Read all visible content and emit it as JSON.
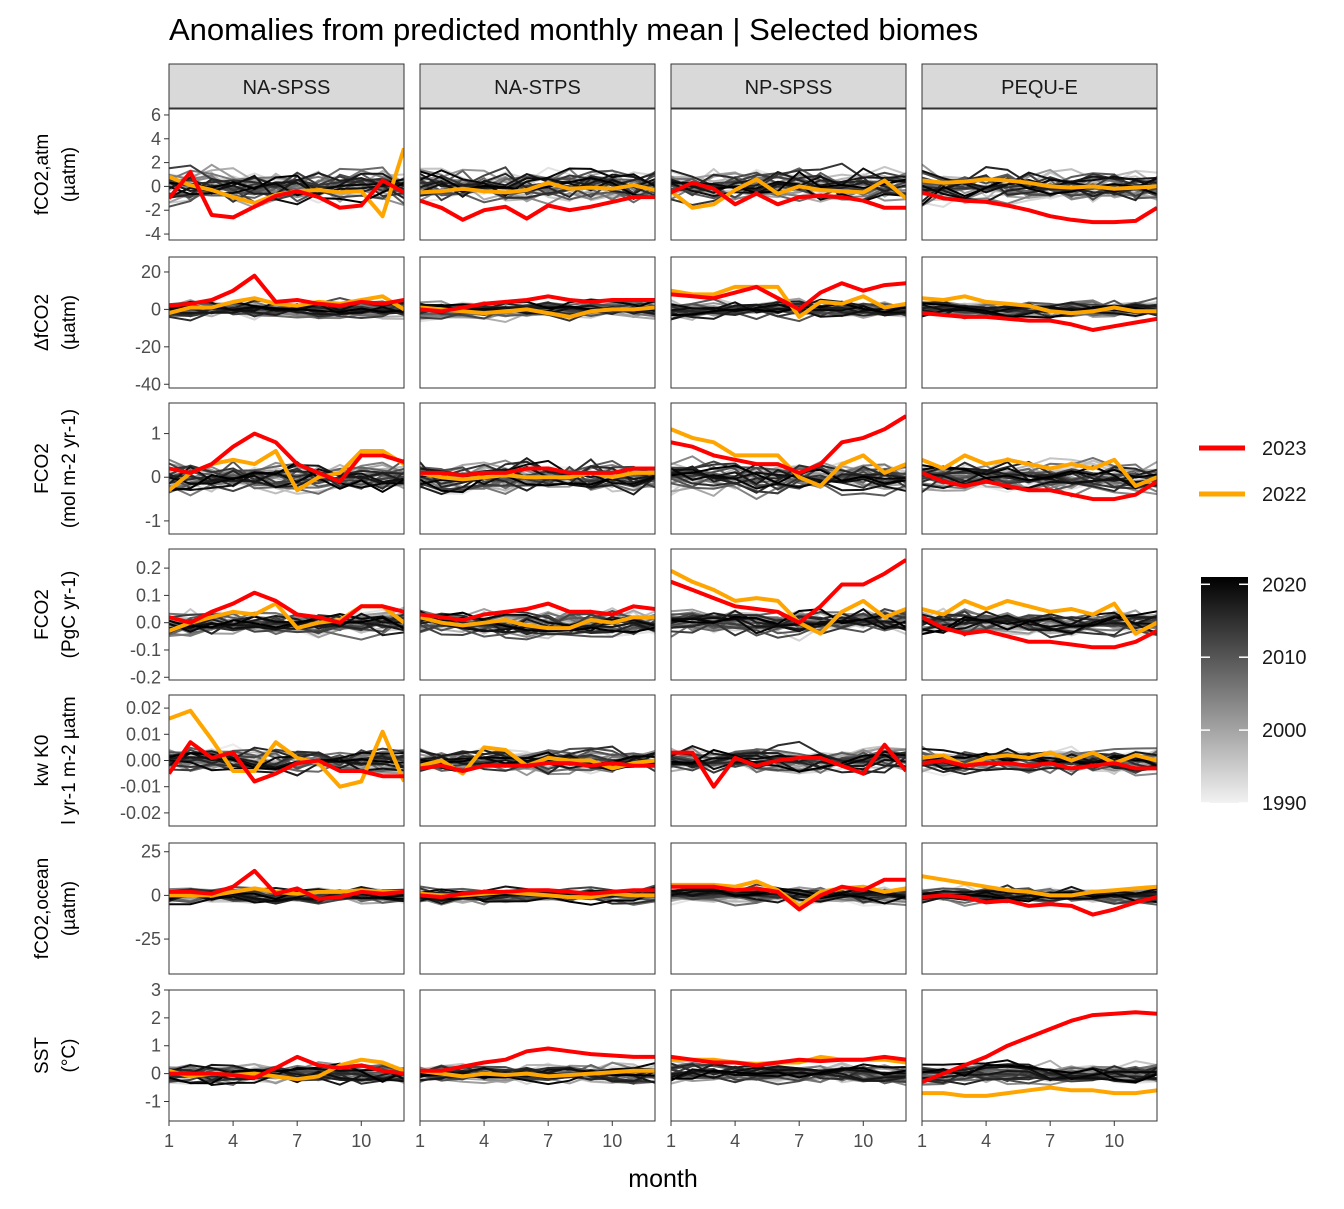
{
  "chart_data": {
    "type": "line",
    "title": "Anomalies from predicted monthly mean | Selected biomes",
    "xlabel": "month",
    "x_ticks": [
      1,
      4,
      7,
      10
    ],
    "x_tick_labels": [
      "1",
      "4",
      "7",
      "10"
    ],
    "xlim": [
      1,
      12
    ],
    "grid": false,
    "facets": [
      "NA-SPSS",
      "NA-STPS",
      "NP-SPSS",
      "PEQU-E"
    ],
    "legend": {
      "placement": "right",
      "highlight": [
        {
          "name": "2023",
          "color": "#FF0000"
        },
        {
          "name": "2022",
          "color": "#FFA500"
        }
      ],
      "gradient": {
        "low_color": "#F2F2F2",
        "high_color": "#000000",
        "ticks": [
          "2020",
          "2010",
          "2000",
          "1990"
        ],
        "range": [
          1990,
          2021
        ]
      }
    },
    "background_years": {
      "first": 1990,
      "last": 2021
    },
    "rows": [
      {
        "id": "fco2atm",
        "ylabel_lines": [
          "fCO2,atm",
          "(µatm)"
        ],
        "ylim": [
          -4.5,
          6.5
        ],
        "y_ticks": [
          -4,
          -2,
          0,
          2,
          4,
          6
        ],
        "y_tick_labels": [
          "-4",
          "-2",
          "0",
          "2",
          "4",
          "6"
        ],
        "spread": 1.2,
        "series": {
          "NA-SPSS": {
            "2023": [
              -1.0,
              1.2,
              -2.4,
              -2.6,
              -1.7,
              -0.8,
              -0.4,
              -0.9,
              -1.8,
              -1.6,
              0.5,
              -0.5
            ],
            "2022": [
              0.8,
              0.1,
              -0.3,
              -0.9,
              -1.4,
              -0.7,
              -0.4,
              -0.3,
              -0.5,
              -0.4,
              -2.5,
              3.2
            ]
          },
          "NA-STPS": {
            "2023": [
              -1.2,
              -1.8,
              -2.8,
              -2.0,
              -1.7,
              -2.7,
              -1.6,
              -2.0,
              -1.7,
              -1.3,
              -0.9,
              -0.9
            ],
            "2022": [
              -0.5,
              -0.4,
              -0.2,
              -0.4,
              -0.5,
              -0.3,
              0.3,
              -0.2,
              -0.1,
              -0.2,
              0.1,
              -0.3
            ]
          },
          "NP-SPSS": {
            "2023": [
              -0.5,
              0.3,
              -0.2,
              -1.5,
              -0.6,
              -1.5,
              -0.9,
              -0.8,
              -0.9,
              -1.2,
              -1.8,
              -1.8
            ],
            "2022": [
              -0.4,
              -1.8,
              -1.5,
              -0.3,
              0.6,
              -0.6,
              0.0,
              -0.3,
              -0.4,
              -0.5,
              0.5,
              -1.0
            ]
          },
          "PEQU-E": {
            "2023": [
              -0.5,
              -1.0,
              -1.2,
              -1.3,
              -1.6,
              -2.0,
              -2.5,
              -2.8,
              -3.0,
              -3.0,
              -2.9,
              -1.8
            ],
            "2022": [
              0.5,
              0.3,
              0.4,
              0.6,
              0.5,
              0.3,
              0.0,
              -0.1,
              0.0,
              -0.2,
              -0.1,
              0.0
            ]
          }
        }
      },
      {
        "id": "dfco2",
        "ylabel_lines": [
          "ΔfCO2",
          "(µatm)"
        ],
        "ylim": [
          -42,
          28
        ],
        "y_ticks": [
          -40,
          -20,
          0,
          20
        ],
        "y_tick_labels": [
          "-40",
          "-20",
          "0",
          "20"
        ],
        "spread": 4,
        "series": {
          "NA-SPSS": {
            "2023": [
              2,
              3,
              5,
              10,
              18,
              4,
              5,
              3,
              2,
              4,
              3,
              5
            ],
            "2022": [
              -2,
              1,
              1,
              4,
              6,
              3,
              2,
              4,
              3,
              5,
              7,
              0
            ]
          },
          "NA-STPS": {
            "2023": [
              0,
              -1,
              1,
              3,
              4,
              5,
              7,
              5,
              4,
              5,
              5,
              5
            ],
            "2022": [
              1,
              0,
              -1,
              -2,
              -1,
              0,
              -2,
              -4,
              -1,
              0,
              0,
              1
            ]
          },
          "NP-SPSS": {
            "2023": [
              8,
              7,
              6,
              9,
              12,
              6,
              0,
              9,
              14,
              10,
              13,
              14
            ],
            "2022": [
              10,
              8,
              8,
              12,
              12,
              12,
              -4,
              4,
              3,
              7,
              1,
              3
            ]
          },
          "PEQU-E": {
            "2023": [
              -2,
              -3,
              -4,
              -4,
              -5,
              -6,
              -6,
              -8,
              -11,
              -9,
              -7,
              -5
            ],
            "2022": [
              6,
              5,
              7,
              4,
              3,
              2,
              -1,
              -2,
              -1,
              1,
              -1,
              -1
            ]
          }
        }
      },
      {
        "id": "fco2flux",
        "ylabel_lines": [
          "FCO2",
          "(mol m-2 yr-1)"
        ],
        "ylim": [
          -1.3,
          1.7
        ],
        "y_ticks": [
          -1,
          0,
          1
        ],
        "y_tick_labels": [
          "-1",
          "0",
          "1"
        ],
        "spread": 0.3,
        "series": {
          "NA-SPSS": {
            "2023": [
              0.2,
              0.1,
              0.3,
              0.7,
              1.0,
              0.8,
              0.3,
              0.1,
              -0.1,
              0.5,
              0.5,
              0.35
            ],
            "2022": [
              -0.3,
              0.1,
              0.3,
              0.4,
              0.3,
              0.6,
              -0.3,
              0.0,
              0.1,
              0.6,
              0.6,
              0.3
            ]
          },
          "NA-STPS": {
            "2023": [
              0.1,
              0.1,
              0.05,
              0.1,
              0.1,
              0.2,
              0.2,
              0.1,
              0.1,
              0.1,
              0.2,
              0.2
            ],
            "2022": [
              0.1,
              0.0,
              -0.05,
              0.0,
              0.05,
              0.0,
              0.0,
              0.0,
              0.1,
              0.0,
              0.1,
              0.1
            ]
          },
          "NP-SPSS": {
            "2023": [
              0.8,
              0.7,
              0.5,
              0.4,
              0.3,
              0.3,
              0.1,
              0.3,
              0.8,
              0.9,
              1.1,
              1.4
            ],
            "2022": [
              1.1,
              0.9,
              0.8,
              0.5,
              0.5,
              0.5,
              0.0,
              -0.2,
              0.3,
              0.5,
              0.1,
              0.3
            ]
          },
          "PEQU-E": {
            "2023": [
              0.1,
              -0.1,
              -0.2,
              -0.1,
              -0.2,
              -0.3,
              -0.3,
              -0.4,
              -0.5,
              -0.5,
              -0.4,
              -0.1
            ],
            "2022": [
              0.4,
              0.2,
              0.5,
              0.3,
              0.4,
              0.3,
              0.2,
              0.3,
              0.2,
              0.4,
              -0.2,
              0.0
            ]
          }
        }
      },
      {
        "id": "fco2pgc",
        "ylabel_lines": [
          "FCO2",
          "(PgC yr-1)"
        ],
        "ylim": [
          -0.21,
          0.27
        ],
        "y_ticks": [
          -0.2,
          -0.1,
          0.0,
          0.1,
          0.2
        ],
        "y_tick_labels": [
          "-0.2",
          "-0.1",
          "0.0",
          "0.1",
          "0.2"
        ],
        "spread": 0.04,
        "series": {
          "NA-SPSS": {
            "2023": [
              0.02,
              0.0,
              0.04,
              0.07,
              0.11,
              0.08,
              0.03,
              0.02,
              0.0,
              0.06,
              0.06,
              0.04
            ],
            "2022": [
              -0.03,
              0.0,
              0.02,
              0.04,
              0.03,
              0.07,
              -0.02,
              0.0,
              0.01,
              0.06,
              0.06,
              0.0
            ]
          },
          "NA-STPS": {
            "2023": [
              0.03,
              0.02,
              0.01,
              0.03,
              0.04,
              0.05,
              0.07,
              0.04,
              0.04,
              0.03,
              0.06,
              0.05
            ],
            "2022": [
              0.02,
              0.0,
              -0.01,
              0.0,
              0.01,
              -0.01,
              -0.02,
              -0.02,
              0.01,
              0.0,
              0.02,
              0.02
            ]
          },
          "NP-SPSS": {
            "2023": [
              0.15,
              0.12,
              0.09,
              0.06,
              0.05,
              0.04,
              0.0,
              0.06,
              0.14,
              0.14,
              0.18,
              0.23
            ],
            "2022": [
              0.19,
              0.15,
              0.12,
              0.08,
              0.09,
              0.08,
              0.0,
              -0.04,
              0.04,
              0.08,
              0.02,
              0.05
            ]
          },
          "PEQU-E": {
            "2023": [
              0.02,
              -0.02,
              -0.04,
              -0.03,
              -0.05,
              -0.07,
              -0.07,
              -0.08,
              -0.09,
              -0.09,
              -0.07,
              -0.03
            ],
            "2022": [
              0.05,
              0.03,
              0.08,
              0.05,
              0.08,
              0.06,
              0.04,
              0.05,
              0.03,
              0.07,
              -0.04,
              0.0
            ]
          }
        }
      },
      {
        "id": "kwk0",
        "ylabel_lines": [
          "kw K0",
          "l yr-1 m-2 µatm"
        ],
        "ylim": [
          -0.025,
          0.025
        ],
        "y_ticks": [
          -0.02,
          -0.01,
          0.0,
          0.01,
          0.02
        ],
        "y_tick_labels": [
          "-0.02",
          "-0.01",
          "0.00",
          "0.01",
          "0.02"
        ],
        "spread": 0.004,
        "series": {
          "NA-SPSS": {
            "2023": [
              -0.005,
              0.007,
              0.001,
              0.003,
              -0.008,
              -0.005,
              -0.001,
              0.0,
              -0.004,
              -0.004,
              -0.006,
              -0.006
            ],
            "2022": [
              0.016,
              0.019,
              0.008,
              -0.004,
              -0.004,
              0.007,
              0.001,
              -0.001,
              -0.01,
              -0.008,
              0.011,
              -0.008
            ]
          },
          "NA-STPS": {
            "2023": [
              -0.003,
              -0.002,
              -0.004,
              -0.002,
              -0.002,
              -0.002,
              -0.001,
              -0.001,
              -0.002,
              -0.001,
              -0.002,
              -0.002
            ],
            "2022": [
              -0.002,
              0.0,
              -0.005,
              0.005,
              0.004,
              -0.002,
              0.001,
              0.0,
              0.0,
              -0.003,
              -0.001,
              0.0
            ]
          },
          "NP-SPSS": {
            "2023": [
              0.003,
              0.003,
              -0.01,
              0.001,
              -0.002,
              0.0,
              0.001,
              0.001,
              -0.002,
              -0.005,
              0.006,
              -0.004
            ]
          },
          "PEQU-E": {
            "2023": [
              -0.001,
              0.0,
              -0.002,
              -0.001,
              -0.001,
              -0.002,
              -0.001,
              -0.003,
              -0.002,
              -0.001,
              -0.003,
              -0.003
            ],
            "2022": [
              0.001,
              0.002,
              -0.002,
              0.001,
              0.002,
              0.001,
              0.003,
              0.0,
              0.003,
              -0.001,
              0.002,
              0.0
            ]
          }
        }
      },
      {
        "id": "fco2ocean",
        "ylabel_lines": [
          "fCO2,ocean",
          "(µatm)"
        ],
        "ylim": [
          -45,
          30
        ],
        "y_ticks": [
          -25,
          0,
          25
        ],
        "y_tick_labels": [
          "-25",
          "0",
          "25"
        ],
        "spread": 4,
        "series": {
          "NA-SPSS": {
            "2023": [
              2,
              2,
              1,
              5,
              14,
              1,
              4,
              -2,
              -1,
              2,
              1,
              2
            ],
            "2022": [
              0,
              0,
              0,
              2,
              4,
              2,
              1,
              2,
              2,
              3,
              2,
              2
            ]
          },
          "NA-STPS": {
            "2023": [
              0,
              -1,
              1,
              2,
              2,
              3,
              3,
              2,
              1,
              2,
              3,
              3
            ],
            "2022": [
              1,
              0,
              0,
              1,
              2,
              1,
              0,
              -1,
              -1,
              1,
              0,
              0
            ]
          },
          "NP-SPSS": {
            "2023": [
              5,
              5,
              5,
              3,
              4,
              2,
              -8,
              0,
              5,
              3,
              9,
              9
            ],
            "2022": [
              6,
              6,
              6,
              5,
              8,
              3,
              -6,
              2,
              4,
              5,
              2,
              4
            ]
          },
          "PEQU-E": {
            "2023": [
              -1,
              0,
              -1,
              -4,
              -3,
              -6,
              -5,
              -6,
              -11,
              -8,
              -4,
              -1
            ],
            "2022": [
              11,
              9,
              7,
              5,
              3,
              2,
              0,
              0,
              2,
              3,
              4,
              5
            ]
          }
        }
      },
      {
        "id": "sst",
        "ylabel_lines": [
          "SST",
          "(°C)"
        ],
        "ylim": [
          -1.7,
          3.0
        ],
        "y_ticks": [
          -1,
          0,
          1,
          2,
          3
        ],
        "y_tick_labels": [
          "-1",
          "0",
          "1",
          "2",
          "3"
        ],
        "spread": 0.3,
        "series": {
          "NA-SPSS": {
            "2023": [
              0.0,
              0.0,
              0.0,
              -0.05,
              -0.15,
              0.2,
              0.6,
              0.3,
              0.2,
              0.3,
              0.1,
              0.0
            ],
            "2022": [
              0.1,
              -0.1,
              0.0,
              -0.05,
              0.0,
              -0.1,
              -0.2,
              -0.1,
              0.3,
              0.5,
              0.4,
              0.1
            ]
          },
          "NA-STPS": {
            "2023": [
              0.1,
              0.1,
              0.25,
              0.4,
              0.5,
              0.8,
              0.9,
              0.8,
              0.7,
              0.65,
              0.6,
              0.6
            ],
            "2022": [
              0.1,
              0.0,
              -0.1,
              0.0,
              -0.05,
              0.0,
              -0.1,
              -0.05,
              0.0,
              0.05,
              0.1,
              0.1
            ]
          },
          "NP-SPSS": {
            "2023": [
              0.6,
              0.5,
              0.4,
              0.4,
              0.3,
              0.4,
              0.5,
              0.45,
              0.5,
              0.5,
              0.6,
              0.5
            ],
            "2022": [
              0.5,
              0.5,
              0.5,
              0.4,
              0.35,
              0.4,
              0.4,
              0.6,
              0.5,
              0.5,
              0.5,
              0.4
            ]
          },
          "PEQU-E": {
            "2023": [
              -0.3,
              0.0,
              0.3,
              0.6,
              1.0,
              1.3,
              1.6,
              1.9,
              2.1,
              2.15,
              2.2,
              2.15
            ],
            "2022": [
              -0.7,
              -0.7,
              -0.8,
              -0.8,
              -0.7,
              -0.6,
              -0.5,
              -0.6,
              -0.6,
              -0.7,
              -0.7,
              -0.6
            ]
          }
        }
      }
    ]
  }
}
